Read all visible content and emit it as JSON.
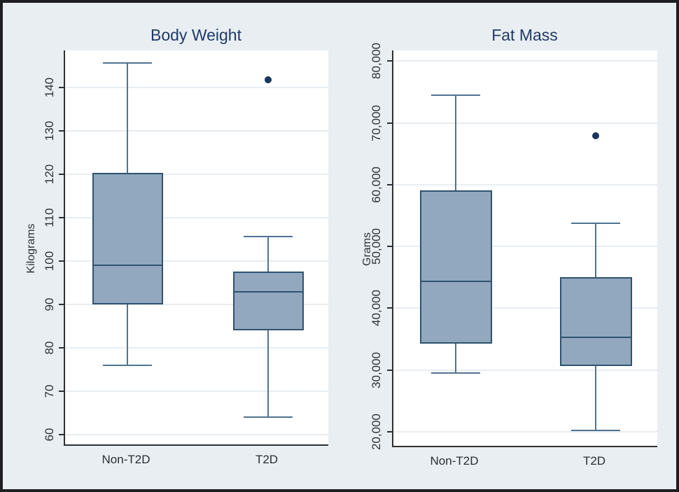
{
  "figure": {
    "background_color": "#e8eef2",
    "border_color": "#1d1f22",
    "plot_background": "#ffffff"
  },
  "colors": {
    "title": "#213a66",
    "axis_line": "#303030",
    "tick_label": "#2e3237",
    "gridline": "#e8edf2",
    "box_fill": "#92a8be",
    "box_border": "#2f536e",
    "whisker": "#4f7492",
    "outlier": "#17375e"
  },
  "chart_data": [
    {
      "type": "box",
      "title": "Body Weight",
      "ylabel": "Kilograms",
      "xlabel": "",
      "categories": [
        "Non-T2D",
        "T2D"
      ],
      "ylim": [
        57.7,
        148.6
      ],
      "yticks": [
        60,
        70,
        80,
        90,
        100,
        110,
        120,
        130,
        140
      ],
      "ytick_labels": [
        "60",
        "70",
        "80",
        "90",
        "100",
        "110",
        "120",
        "130",
        "140"
      ],
      "grid": true,
      "legend": "none",
      "boxes": [
        {
          "category": "Non-T2D",
          "whisker_low": 76,
          "q1": 90,
          "median": 99,
          "q3": 120.4,
          "whisker_high": 145.7,
          "outliers": []
        },
        {
          "category": "T2D",
          "whisker_low": 64,
          "q1": 84,
          "median": 92.9,
          "q3": 97.6,
          "whisker_high": 105.6,
          "outliers": [
            141.8
          ]
        }
      ]
    },
    {
      "type": "box",
      "title": "Fat Mass",
      "ylabel": "Grams",
      "xlabel": "",
      "categories": [
        "Non-T2D",
        "T2D"
      ],
      "ylim": [
        17740,
        81730
      ],
      "yticks": [
        20000,
        30000,
        40000,
        50000,
        60000,
        70000,
        80000
      ],
      "ytick_labels": [
        "20,000",
        "30,000",
        "40,000",
        "50,000",
        "60,000",
        "70,000",
        "80,000"
      ],
      "grid": true,
      "legend": "none",
      "boxes": [
        {
          "category": "Non-T2D",
          "whisker_low": 29500,
          "q1": 34300,
          "median": 44400,
          "q3": 59100,
          "whisker_high": 74500,
          "outliers": []
        },
        {
          "category": "T2D",
          "whisker_low": 20200,
          "q1": 30600,
          "median": 35300,
          "q3": 45000,
          "whisker_high": 53700,
          "outliers": [
            67900
          ]
        }
      ]
    }
  ]
}
